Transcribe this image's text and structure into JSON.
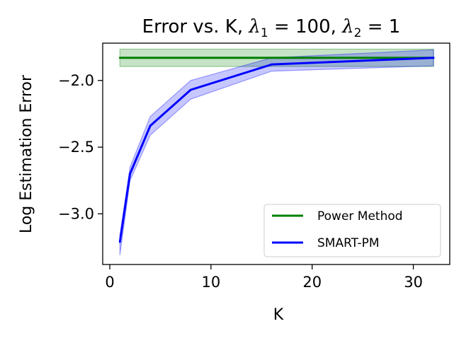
{
  "chart_data": {
    "type": "line",
    "title": {
      "prefix": "Error vs. K, ",
      "sym1": "λ",
      "sub1": "1",
      "eq1": " = 100, ",
      "sym2": "λ",
      "sub2": "2",
      "eq2": " = 1"
    },
    "xlabel": "K",
    "ylabel": "Log Estimation Error",
    "xlim": [
      -0.7,
      33.6
    ],
    "ylim": [
      -3.38,
      -1.72
    ],
    "xticks": [
      0,
      10,
      20,
      30
    ],
    "xtick_labels": [
      "0",
      "10",
      "20",
      "30"
    ],
    "yticks": [
      -3.0,
      -2.5,
      -2.0
    ],
    "ytick_labels": [
      "−3.0",
      "−2.5",
      "−2.0"
    ],
    "grid": false,
    "legend_position": "lower-right",
    "series": [
      {
        "name": "Power Method",
        "color": "#008000",
        "x": [
          1,
          2,
          4,
          8,
          16,
          32
        ],
        "y": [
          -1.83,
          -1.83,
          -1.83,
          -1.83,
          -1.83,
          -1.83
        ],
        "lower": [
          -1.895,
          -1.895,
          -1.895,
          -1.895,
          -1.895,
          -1.895
        ],
        "upper": [
          -1.765,
          -1.765,
          -1.765,
          -1.765,
          -1.765,
          -1.765
        ]
      },
      {
        "name": "SMART-PM",
        "color": "#0000ff",
        "x": [
          1,
          2,
          4,
          8,
          16,
          32
        ],
        "y": [
          -3.21,
          -2.7,
          -2.34,
          -2.07,
          -1.88,
          -1.83
        ],
        "lower": [
          -3.31,
          -2.75,
          -2.41,
          -2.14,
          -1.93,
          -1.89
        ],
        "upper": [
          -3.16,
          -2.65,
          -2.27,
          -2.0,
          -1.83,
          -1.77
        ]
      }
    ]
  }
}
